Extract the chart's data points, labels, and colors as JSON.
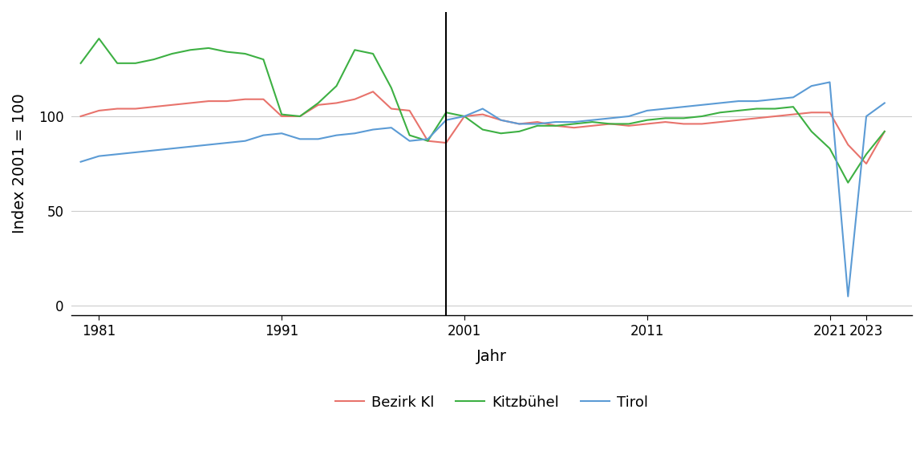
{
  "title": "",
  "xlabel": "Jahr",
  "ylabel": "Index 2001 = 100",
  "vline_x": 2000,
  "ylim": [
    -5,
    155
  ],
  "yticks": [
    0,
    50,
    100
  ],
  "colors": {
    "bezirk_kl": "#E8736C",
    "kitzbuehel": "#3DB043",
    "tirol": "#5B9BD5"
  },
  "legend_labels": [
    "Bezirk Kl",
    "Kitzbühel",
    "Tirol"
  ],
  "background_color": "#FFFFFF",
  "grid_color": "#CCCCCC",
  "years_bezirk_kl": [
    1980,
    1981,
    1982,
    1983,
    1984,
    1985,
    1986,
    1987,
    1988,
    1989,
    1990,
    1991,
    1992,
    1993,
    1994,
    1995,
    1996,
    1997,
    1998,
    1999,
    2000,
    2001,
    2002,
    2003,
    2004,
    2005,
    2006,
    2007,
    2008,
    2009,
    2010,
    2011,
    2012,
    2013,
    2014,
    2015,
    2016,
    2017,
    2018,
    2019,
    2020,
    2021,
    2022,
    2023,
    2024
  ],
  "values_bezirk_kl": [
    100,
    103,
    104,
    104,
    105,
    106,
    107,
    108,
    108,
    109,
    109,
    100,
    100,
    106,
    107,
    109,
    113,
    104,
    103,
    87,
    86,
    100,
    101,
    98,
    96,
    97,
    95,
    94,
    95,
    96,
    95,
    96,
    97,
    96,
    96,
    97,
    98,
    99,
    100,
    101,
    102,
    102,
    85,
    75,
    92
  ],
  "years_kitzbuehel": [
    1980,
    1981,
    1982,
    1983,
    1984,
    1985,
    1986,
    1987,
    1988,
    1989,
    1990,
    1991,
    1992,
    1993,
    1994,
    1995,
    1996,
    1997,
    1998,
    1999,
    2000,
    2001,
    2002,
    2003,
    2004,
    2005,
    2006,
    2007,
    2008,
    2009,
    2010,
    2011,
    2012,
    2013,
    2014,
    2015,
    2016,
    2017,
    2018,
    2019,
    2020,
    2021,
    2022,
    2023,
    2024
  ],
  "values_kitzbuehel": [
    128,
    141,
    128,
    128,
    130,
    133,
    135,
    136,
    134,
    133,
    130,
    101,
    100,
    107,
    116,
    135,
    133,
    115,
    90,
    87,
    102,
    100,
    93,
    91,
    92,
    95,
    95,
    96,
    97,
    96,
    96,
    98,
    99,
    99,
    100,
    102,
    103,
    104,
    104,
    105,
    92,
    83,
    65,
    80,
    92
  ],
  "years_tirol": [
    1980,
    1981,
    1982,
    1983,
    1984,
    1985,
    1986,
    1987,
    1988,
    1989,
    1990,
    1991,
    1992,
    1993,
    1994,
    1995,
    1996,
    1997,
    1998,
    1999,
    2000,
    2001,
    2002,
    2003,
    2004,
    2005,
    2006,
    2007,
    2008,
    2009,
    2010,
    2011,
    2012,
    2013,
    2014,
    2015,
    2016,
    2017,
    2018,
    2019,
    2020,
    2021,
    2022,
    2023,
    2024
  ],
  "values_tirol": [
    76,
    79,
    80,
    81,
    82,
    83,
    84,
    85,
    86,
    87,
    90,
    91,
    88,
    88,
    90,
    91,
    93,
    94,
    87,
    88,
    98,
    100,
    104,
    98,
    96,
    96,
    97,
    97,
    98,
    99,
    100,
    103,
    104,
    105,
    106,
    107,
    108,
    108,
    109,
    110,
    116,
    118,
    5,
    100,
    107
  ],
  "xtick_positions": [
    1981,
    1991,
    2001,
    2011,
    2021,
    2023
  ],
  "xtick_labels": [
    "1981",
    "1991",
    "2001",
    "2011",
    "2021",
    "2023"
  ]
}
